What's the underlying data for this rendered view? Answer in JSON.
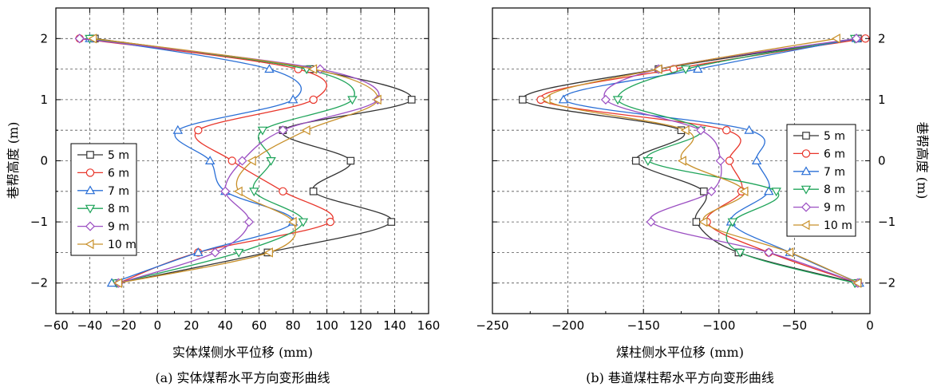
{
  "chart_data": [
    {
      "type": "line",
      "xlabel": "实体煤侧水平位移 (mm)",
      "ylabel": "巷帮高度 (m)",
      "caption": "(a) 实体煤帮水平方向变形曲线",
      "xlim": [
        -60,
        160
      ],
      "ylim": [
        -2.5,
        2.5
      ],
      "xticks": [
        -60,
        -40,
        -20,
        0,
        20,
        40,
        60,
        80,
        100,
        120,
        140,
        160
      ],
      "yticks": [
        -2,
        -1,
        0,
        1,
        2
      ],
      "grid": true,
      "legend_position": "left",
      "y": [
        2,
        1.5,
        1,
        0.5,
        0,
        -0.5,
        -1,
        -1.5,
        -2
      ],
      "series": [
        {
          "name": "5 m",
          "color": "#333333",
          "marker": "square",
          "x": [
            -37,
            90,
            150,
            74,
            114,
            92,
            138,
            65,
            -23
          ]
        },
        {
          "name": "6 m",
          "color": "#e8352a",
          "marker": "circle",
          "x": [
            -46,
            83,
            92,
            24,
            44,
            74,
            102,
            24,
            -23
          ]
        },
        {
          "name": "7 m",
          "color": "#2a6fd6",
          "marker": "triangle-up",
          "x": [
            -40,
            66,
            80,
            12,
            31,
            40,
            80,
            24,
            -27
          ]
        },
        {
          "name": "8 m",
          "color": "#1fa45a",
          "marker": "triangle-down",
          "x": [
            -40,
            88,
            115,
            62,
            67,
            57,
            86,
            48,
            -24
          ]
        },
        {
          "name": "9 m",
          "color": "#9b4fc2",
          "marker": "diamond",
          "x": [
            -46,
            96,
            130,
            74,
            50,
            40,
            54,
            34,
            -23
          ]
        },
        {
          "name": "10 m",
          "color": "#c8902a",
          "marker": "triangle-left",
          "x": [
            -38,
            92,
            130,
            88,
            56,
            48,
            80,
            66,
            -23
          ]
        }
      ]
    },
    {
      "type": "line",
      "xlabel": "煤柱侧水平位移 (mm)",
      "ylabel": "巷帮高度 (m)",
      "caption": "(b) 巷道煤柱帮水平方向变形曲线",
      "xlim": [
        -250,
        0
      ],
      "ylim": [
        -2.5,
        2.5
      ],
      "xticks": [
        -250,
        -200,
        -150,
        -100,
        -50,
        0
      ],
      "yticks": [
        -2,
        -1,
        0,
        1,
        2
      ],
      "grid": true,
      "legend_position": "right",
      "y": [
        2,
        1.5,
        1,
        0.5,
        0,
        -0.5,
        -1,
        -1.5,
        -2
      ],
      "series": [
        {
          "name": "5 m",
          "color": "#333333",
          "marker": "square",
          "x": [
            -8,
            -140,
            -230,
            -125,
            -155,
            -110,
            -115,
            -87,
            -8
          ]
        },
        {
          "name": "6 m",
          "color": "#e8352a",
          "marker": "circle",
          "x": [
            -3,
            -130,
            -218,
            -95,
            -93,
            -85,
            -108,
            -67,
            -8
          ]
        },
        {
          "name": "7 m",
          "color": "#2a6fd6",
          "marker": "triangle-up",
          "x": [
            -9,
            -114,
            -203,
            -80,
            -75,
            -67,
            -92,
            -53,
            -7
          ]
        },
        {
          "name": "8 m",
          "color": "#1fa45a",
          "marker": "triangle-down",
          "x": [
            -10,
            -122,
            -167,
            -112,
            -147,
            -62,
            -91,
            -86,
            -10
          ]
        },
        {
          "name": "9 m",
          "color": "#9b4fc2",
          "marker": "diamond",
          "x": [
            -9,
            -140,
            -175,
            -112,
            -99,
            -105,
            -145,
            -67,
            -8
          ]
        },
        {
          "name": "10 m",
          "color": "#c8902a",
          "marker": "triangle-left",
          "x": [
            -22,
            -140,
            -214,
            -122,
            -124,
            -83,
            -110,
            -53,
            -8
          ]
        }
      ]
    }
  ]
}
